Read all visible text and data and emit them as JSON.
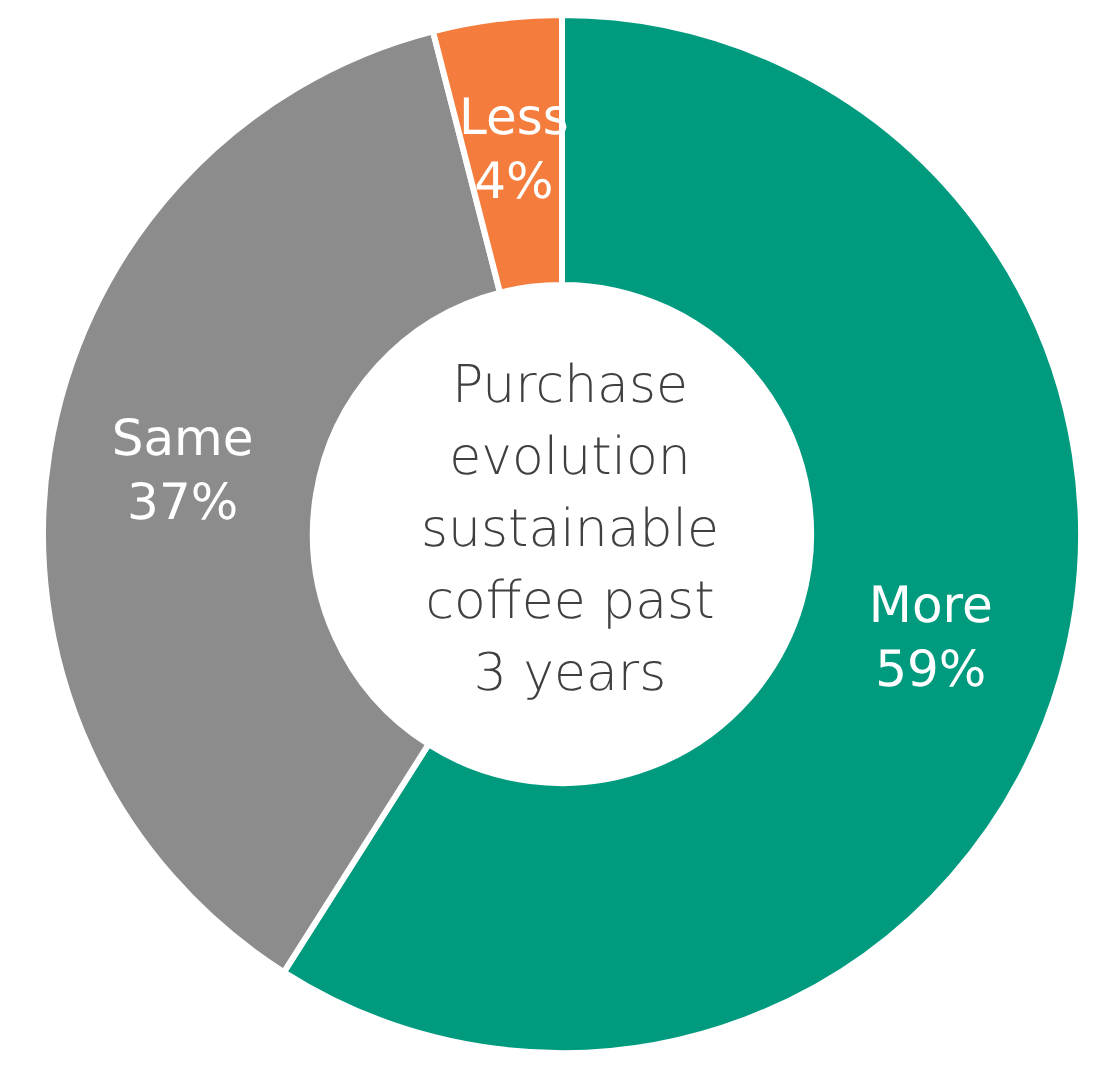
{
  "chart_data": {
    "type": "donut",
    "title": "Purchase evolution sustainable coffee past 3 years",
    "categories": [
      "More",
      "Same",
      "Less"
    ],
    "values": [
      59,
      37,
      4
    ],
    "value_labels": [
      "59%",
      "37%",
      "4%"
    ],
    "colors": [
      "#009b7f",
      "#8c8c8c",
      "#f47c3c"
    ],
    "legend": false
  }
}
